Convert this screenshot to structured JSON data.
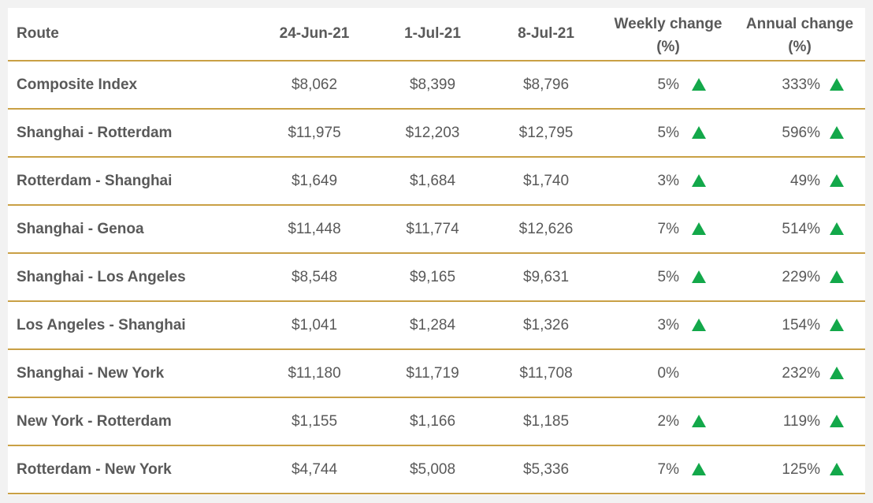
{
  "table": {
    "columns": [
      "Route",
      "24-Jun-21",
      "1-Jul-21",
      "8-Jul-21",
      "Weekly change (%)",
      "Annual change (%)"
    ],
    "rows": [
      [
        "Composite Index",
        "$8,062",
        "$8,399",
        "$8,796",
        "5%",
        "333%"
      ],
      [
        "Shanghai - Rotterdam",
        "$11,975",
        "$12,203",
        "$12,795",
        "5%",
        "596%"
      ],
      [
        "Rotterdam - Shanghai",
        "$1,649",
        "$1,684",
        "$1,740",
        "3%",
        "49%"
      ],
      [
        "Shanghai - Genoa",
        "$11,448",
        "$11,774",
        "$12,626",
        "7%",
        "514%"
      ],
      [
        "Shanghai - Los Angeles",
        "$8,548",
        "$9,165",
        "$9,631",
        "5%",
        "229%"
      ],
      [
        "Los Angeles - Shanghai",
        "$1,041",
        "$1,284",
        "$1,326",
        "3%",
        "154%"
      ],
      [
        "Shanghai - New York",
        "$11,180",
        "$11,719",
        "$11,708",
        "0%",
        "232%"
      ],
      [
        "New York - Rotterdam",
        "$1,155",
        "$1,166",
        "$1,185",
        "2%",
        "119%"
      ],
      [
        "Rotterdam - New York",
        "$4,744",
        "$5,008",
        "$5,336",
        "7%",
        "125%"
      ]
    ]
  }
}
